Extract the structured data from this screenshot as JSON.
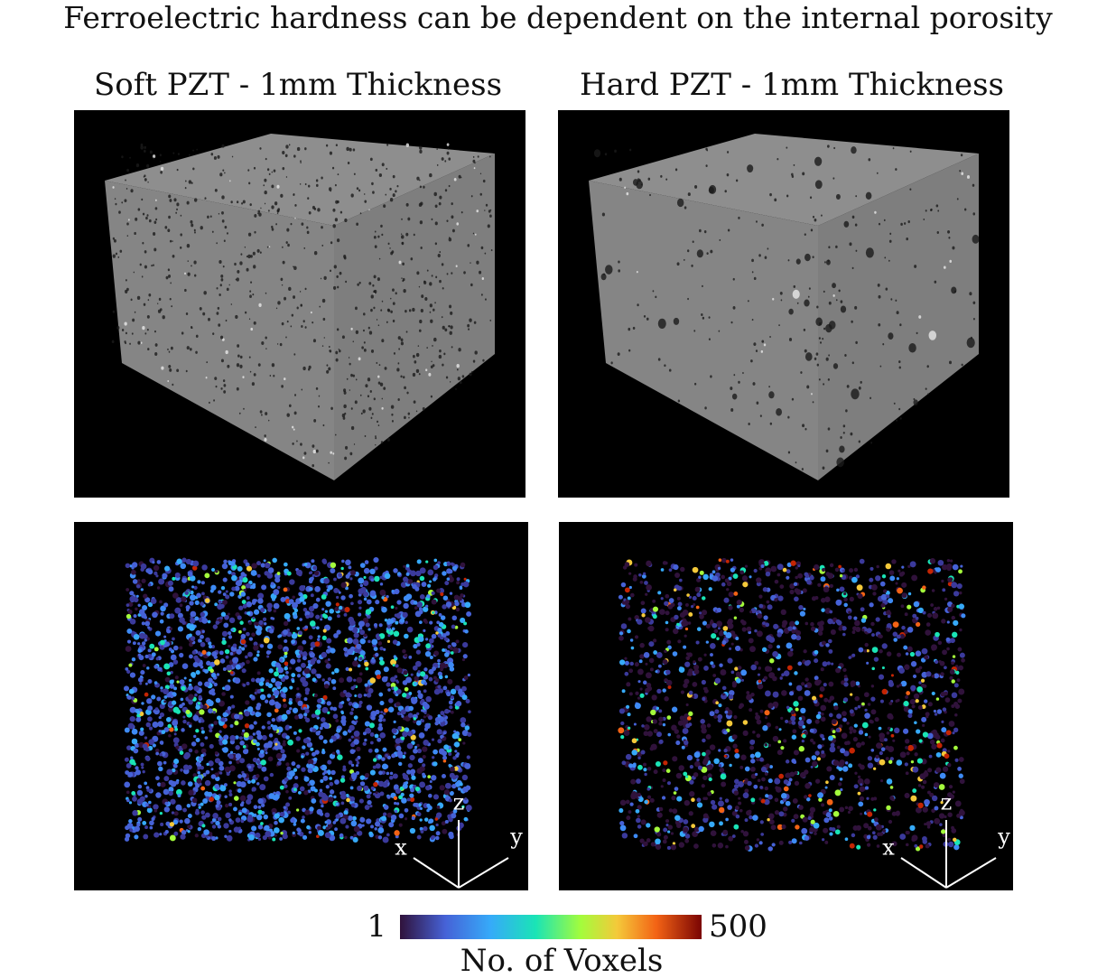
{
  "title": "Ferroelectric hardness can be dependent on the internal porosity",
  "panels": [
    {
      "label": "Soft PZT - 1mm Thickness",
      "axes": {
        "x": "x",
        "y": "y",
        "z": "z"
      }
    },
    {
      "label": "Hard PZT - 1mm Thickness",
      "axes": {
        "x": "x",
        "y": "y",
        "z": "z"
      }
    }
  ],
  "colorbar": {
    "min": "1",
    "max": "500",
    "label": "No. of Voxels"
  }
}
